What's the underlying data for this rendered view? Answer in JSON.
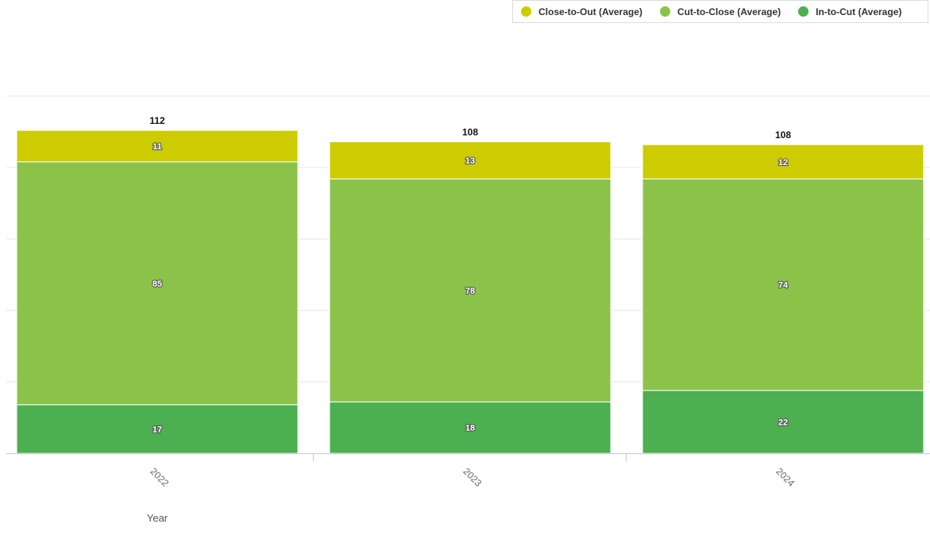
{
  "chart_data": {
    "type": "bar",
    "stacked": true,
    "categories": [
      "2022",
      "2023",
      "2024"
    ],
    "series": [
      {
        "name": "In-to-Cut (Average)",
        "color": "#4caf50",
        "values": [
          17,
          18,
          22
        ]
      },
      {
        "name": "Cut-to-Close (Average)",
        "color": "#8bc34a",
        "values": [
          85,
          78,
          74
        ]
      },
      {
        "name": "Close-to-Out (Average)",
        "color": "#cdcc00",
        "values": [
          11,
          13,
          12
        ]
      }
    ],
    "totals": [
      "112",
      "108",
      "108"
    ],
    "legend_order": [
      "Close-to-Out (Average)",
      "Cut-to-Close (Average)",
      "In-to-Cut (Average)"
    ],
    "legend_colors": [
      "#cdcc00",
      "#8bc34a",
      "#4caf50"
    ],
    "xlabel": "Year",
    "ylabel": "",
    "ylim": [
      0,
      125
    ],
    "grid": true,
    "legend_position": "top-right"
  }
}
